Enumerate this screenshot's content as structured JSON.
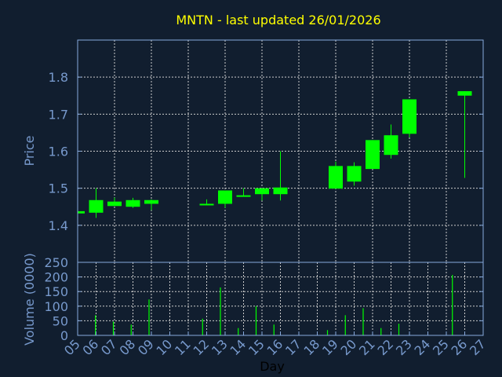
{
  "chart_data": [
    {
      "type": "candlestick",
      "title": "MNTN - last updated 26/01/2026",
      "ylabel": "Price",
      "xlabel": "",
      "ylim": [
        1.3,
        1.9
      ],
      "yticks": [
        "1.4",
        "1.5",
        "1.6",
        "1.7",
        "1.8"
      ],
      "grid": true,
      "candles": [
        {
          "day": 5,
          "open": 1.432,
          "close": 1.438,
          "high": 1.438,
          "low": 1.432
        },
        {
          "day": 6,
          "open": 1.434,
          "close": 1.468,
          "high": 1.5,
          "low": 1.42
        },
        {
          "day": 7,
          "open": 1.452,
          "close": 1.464,
          "high": 1.475,
          "low": 1.452
        },
        {
          "day": 8,
          "open": 1.45,
          "close": 1.468,
          "high": 1.474,
          "low": 1.447
        },
        {
          "day": 9,
          "open": 1.458,
          "close": 1.468,
          "high": 1.47,
          "low": 1.441
        },
        {
          "day": 12,
          "open": 1.456,
          "close": 1.458,
          "high": 1.47,
          "low": 1.456
        },
        {
          "day": 13,
          "open": 1.458,
          "close": 1.494,
          "high": 1.494,
          "low": 1.447
        },
        {
          "day": 14,
          "open": 1.477,
          "close": 1.481,
          "high": 1.5,
          "low": 1.477
        },
        {
          "day": 15,
          "open": 1.484,
          "close": 1.5,
          "high": 1.5,
          "low": 1.467
        },
        {
          "day": 16,
          "open": 1.484,
          "close": 1.502,
          "high": 1.6,
          "low": 1.467
        },
        {
          "day": 19,
          "open": 1.499,
          "close": 1.56,
          "high": 1.572,
          "low": 1.499
        },
        {
          "day": 20,
          "open": 1.518,
          "close": 1.56,
          "high": 1.57,
          "low": 1.507
        },
        {
          "day": 21,
          "open": 1.552,
          "close": 1.63,
          "high": 1.63,
          "low": 1.552
        },
        {
          "day": 22,
          "open": 1.59,
          "close": 1.643,
          "high": 1.672,
          "low": 1.58
        },
        {
          "day": 23,
          "open": 1.647,
          "close": 1.74,
          "high": 1.74,
          "low": 1.637
        },
        {
          "day": 26,
          "open": 1.75,
          "close": 1.762,
          "high": 1.762,
          "low": 1.528
        }
      ]
    },
    {
      "type": "bar",
      "ylabel": "Volume (0000)",
      "xlabel": "Day",
      "ylim": [
        0,
        250
      ],
      "yticks": [
        "0",
        "50",
        "100",
        "150",
        "200",
        "250"
      ],
      "xticks": [
        "05",
        "06",
        "07",
        "08",
        "09",
        "10",
        "11",
        "12",
        "13",
        "14",
        "15",
        "16",
        "17",
        "18",
        "19",
        "20",
        "21",
        "22",
        "23",
        "24",
        "25",
        "26",
        "27"
      ],
      "grid": true,
      "days": [
        6,
        7,
        8,
        9,
        12,
        13,
        14,
        15,
        16,
        19,
        20,
        21,
        22,
        23,
        26
      ],
      "values": [
        69,
        47,
        37,
        123,
        57,
        164,
        25,
        100,
        37,
        18,
        69,
        93,
        25,
        40,
        207
      ]
    }
  ],
  "colors": {
    "background": "#111e2f",
    "axis": "#88aadd",
    "grid": "#cccccc",
    "candle": "#00ff00",
    "title": "#ffff00",
    "label": "#7799cc",
    "xlabel": "#000000"
  }
}
